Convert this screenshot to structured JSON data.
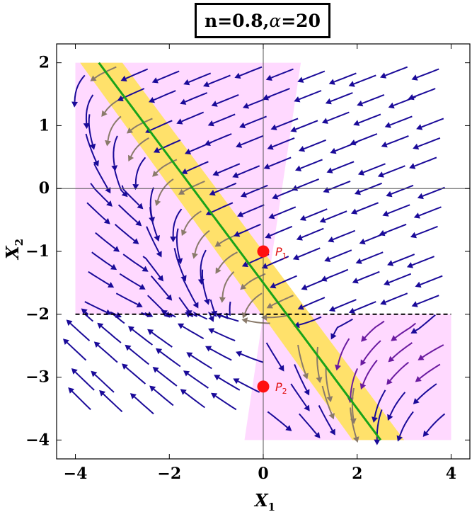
{
  "title": {
    "prefix": "n=0.8, ",
    "alpha_symbol": "α",
    "suffix": " =20"
  },
  "chart_data": {
    "type": "stream_plot",
    "xlabel": "X",
    "xlabel_sub": "1",
    "ylabel": "X",
    "ylabel_sub": "2",
    "xlim": [
      -4.4,
      4.4
    ],
    "ylim": [
      -4.3,
      2.3
    ],
    "x_ticks": [
      -4,
      -2,
      0,
      2,
      4
    ],
    "x_tick_labels": [
      "−4",
      "−2",
      "0",
      "2",
      "4"
    ],
    "y_ticks": [
      2,
      1,
      0,
      -1,
      -2,
      -3,
      -4
    ],
    "y_tick_labels": [
      "2",
      "1",
      "0",
      "−1",
      "−2",
      "−3",
      "−4"
    ],
    "grid": false,
    "zero_axes": true,
    "dashed_line_y": -2,
    "green_line": [
      [
        -3.5,
        2.0
      ],
      [
        2.5,
        -4.0
      ]
    ],
    "yellow_band": [
      [
        -3.9,
        2.0
      ],
      [
        -3.0,
        2.0
      ],
      [
        3.0,
        -4.0
      ],
      [
        1.9,
        -4.0
      ]
    ],
    "pink_regions": [
      [
        [
          -4.0,
          2.0
        ],
        [
          0.8,
          2.0
        ],
        [
          0.0,
          -2.0
        ],
        [
          -4.0,
          -2.0
        ]
      ],
      [
        [
          0.0,
          -2.0
        ],
        [
          4.0,
          -2.0
        ],
        [
          4.0,
          -4.0
        ],
        [
          -0.4,
          -4.0
        ]
      ]
    ],
    "points": [
      {
        "name": "P",
        "sub": "1",
        "x": 0.0,
        "y": -1.0
      },
      {
        "name": "P",
        "sub": "2",
        "x": 0.0,
        "y": -3.15
      }
    ],
    "colors": {
      "stream": "#1a0a99",
      "stream_on_band": "#8a7a6a",
      "stream_lower_right": "#6a1aa0",
      "green_line": "#1aa31a",
      "yellow_band": "#ffe16b",
      "pink_region": "#ffd9ff",
      "points": "#ff1010",
      "dashed_line": "#000000"
    }
  }
}
